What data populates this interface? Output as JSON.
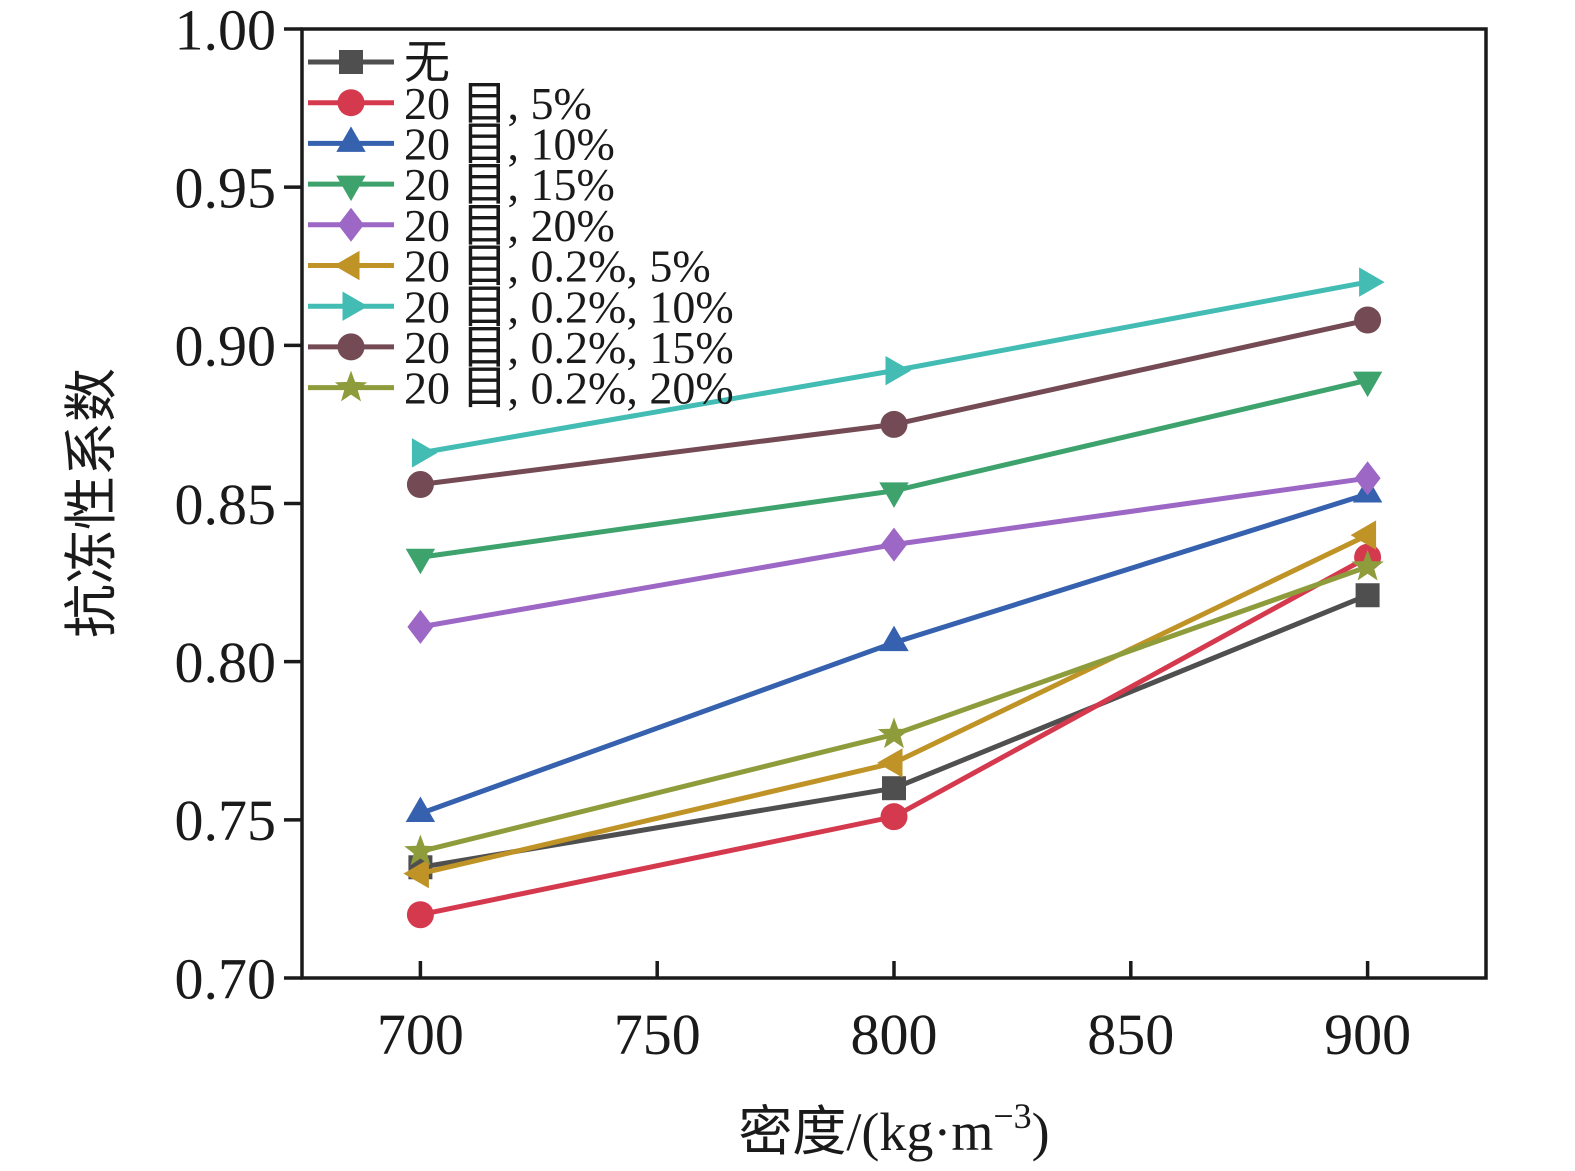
{
  "chart_data": {
    "type": "line",
    "title": "",
    "xlabel": "密度/(kg·m⁻³)",
    "xlabel_parts": {
      "pre": "密度/(kg·m",
      "sup": "−3",
      "post": ")"
    },
    "ylabel": "抗冻性系数",
    "x": [
      700,
      800,
      900
    ],
    "xlim": [
      675,
      925
    ],
    "ylim": [
      0.7,
      1.0
    ],
    "x_ticks": [
      "700",
      "750",
      "800",
      "850",
      "900"
    ],
    "y_ticks": [
      "1.00",
      "0.95",
      "0.90",
      "0.85",
      "0.80",
      "0.75",
      "0.70"
    ],
    "grid": false,
    "legend_position": "top-left",
    "axis_color": "#1a1a1a",
    "series": [
      {
        "name": "无",
        "marker": "square",
        "color": "#4f4f4f",
        "values": [
          0.735,
          0.76,
          0.821
        ]
      },
      {
        "name": "20 目, 5%",
        "marker": "circle",
        "color": "#d5394e",
        "values": [
          0.72,
          0.751,
          0.833
        ]
      },
      {
        "name": "20 目, 10%",
        "marker": "triangle-up",
        "color": "#3561ae",
        "values": [
          0.752,
          0.806,
          0.853
        ]
      },
      {
        "name": "20 目, 15%",
        "marker": "triangle-down",
        "color": "#3da26c",
        "values": [
          0.833,
          0.854,
          0.889
        ]
      },
      {
        "name": "20 目, 20%",
        "marker": "diamond",
        "color": "#9c67c5",
        "values": [
          0.811,
          0.837,
          0.858
        ]
      },
      {
        "name": "20 目, 0.2%, 5%",
        "marker": "triangle-left",
        "color": "#bf9326",
        "values": [
          0.733,
          0.768,
          0.84
        ]
      },
      {
        "name": "20 目, 0.2%, 10%",
        "marker": "triangle-right",
        "color": "#43bcb4",
        "values": [
          0.866,
          0.892,
          0.92
        ]
      },
      {
        "name": "20 目, 0.2%, 15%",
        "marker": "circle",
        "color": "#744b55",
        "values": [
          0.856,
          0.875,
          0.908
        ]
      },
      {
        "name": "20 目, 0.2%, 20%",
        "marker": "star",
        "color": "#8f9c3b",
        "values": [
          0.74,
          0.777,
          0.83
        ]
      }
    ]
  }
}
